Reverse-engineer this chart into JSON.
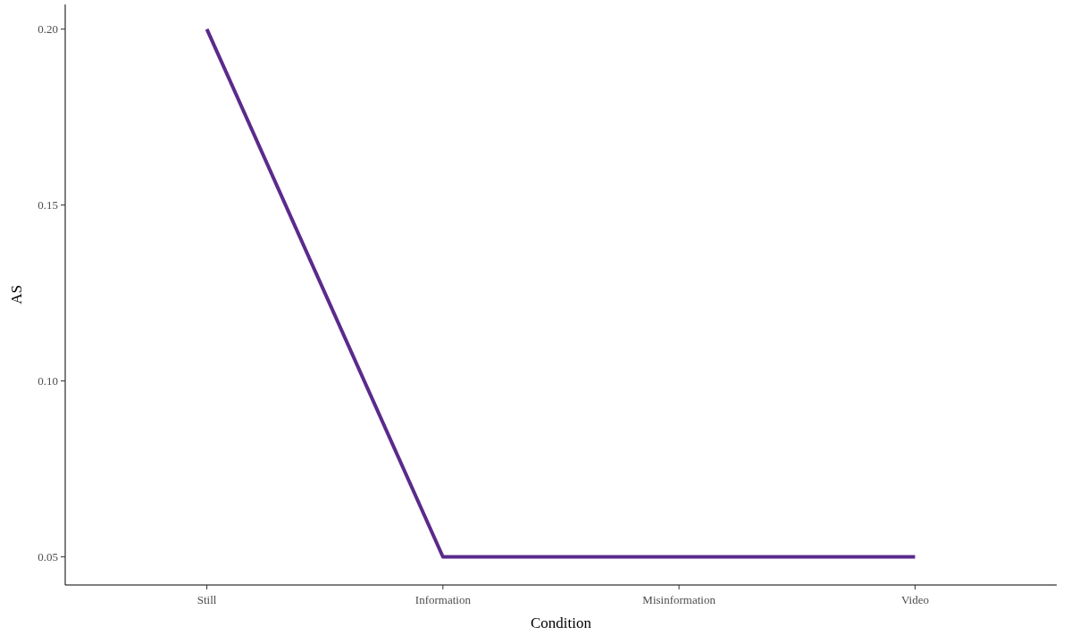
{
  "chart_data": {
    "type": "line",
    "xlabel": "Condition",
    "ylabel": "AS",
    "categories": [
      "Still",
      "Information",
      "Misinformation",
      "Video"
    ],
    "series": [
      {
        "color": "#5b2a8c",
        "values": [
          0.2,
          0.05,
          0.05,
          0.05
        ]
      }
    ],
    "ylim": [
      0.042,
      0.207
    ],
    "yticks": [
      0.05,
      {
        "value": 0.1,
        "label": "0.10"
      },
      0.15,
      {
        "value": 0.2,
        "label": "0.20"
      }
    ],
    "line_style": "solid"
  }
}
